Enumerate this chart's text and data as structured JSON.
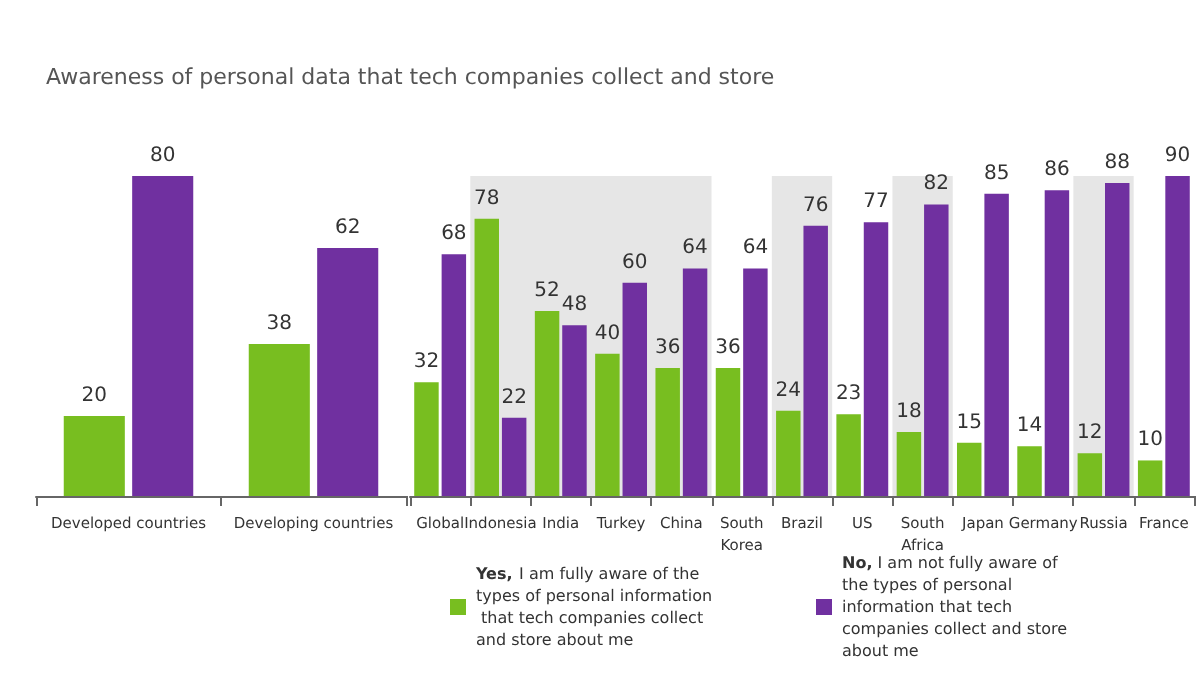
{
  "chart_data": [
    {
      "type": "bar",
      "title": "Awareness of personal data that tech companies collect and store",
      "categories": [
        "Developed countries",
        "Developing countries"
      ],
      "series": [
        {
          "color": "#78be20",
          "values": [
            20,
            38
          ]
        },
        {
          "color": "#7030a0",
          "values": [
            80,
            62
          ]
        }
      ],
      "data_labels": true,
      "legend": false,
      "grid": false
    },
    {
      "type": "bar",
      "categories": [
        "Global",
        "Indonesia",
        "India",
        "Turkey",
        "China",
        "South Korea",
        "Brazil",
        "US",
        "South Africa",
        "Japan",
        "Germany",
        "Russia",
        "France"
      ],
      "series": [
        {
          "name": "Yes, I am fully aware of the types of personal information that tech companies collect and store about me",
          "color": "#78be20",
          "values": [
            32,
            78,
            52,
            40,
            36,
            36,
            24,
            23,
            18,
            15,
            14,
            12,
            10
          ]
        },
        {
          "name": "No, I am not fully aware of the types of personal information that tech companies collect and store about me",
          "color": "#7030a0",
          "values": [
            68,
            22,
            48,
            60,
            64,
            64,
            76,
            77,
            82,
            85,
            86,
            88,
            90
          ]
        }
      ],
      "bands": [
        {
          "axis": "x",
          "from": "Indonesia",
          "to": "China",
          "color": "#e6e6e6"
        },
        {
          "axis": "x",
          "from": "Brazil",
          "to": "Brazil",
          "color": "#e6e6e6"
        },
        {
          "axis": "x",
          "from": "South Africa",
          "to": "South Africa",
          "color": "#e6e6e6"
        },
        {
          "axis": "x",
          "from": "Russia",
          "to": "Russia",
          "color": "#e6e6e6"
        }
      ],
      "data_labels": true,
      "legend": "bottom",
      "grid": false
    }
  ]
}
